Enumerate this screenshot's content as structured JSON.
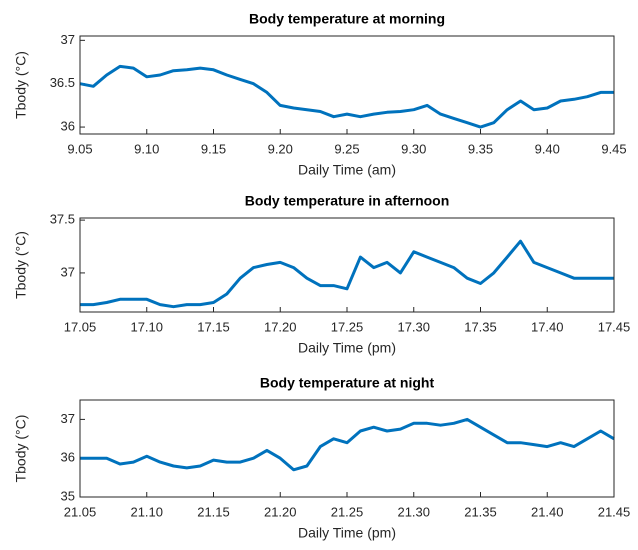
{
  "chart_data": [
    {
      "type": "line",
      "title": "Body temperature at morning",
      "xlabel": "Daily Time (am)",
      "ylabel": "Tbody (°C)",
      "color": "#0072bd",
      "x": [
        9.05,
        9.06,
        9.07,
        9.08,
        9.09,
        9.1,
        9.11,
        9.12,
        9.13,
        9.14,
        9.15,
        9.16,
        9.17,
        9.18,
        9.19,
        9.2,
        9.21,
        9.22,
        9.23,
        9.24,
        9.25,
        9.26,
        9.27,
        9.28,
        9.29,
        9.3,
        9.31,
        9.32,
        9.33,
        9.34,
        9.35,
        9.36,
        9.37,
        9.38,
        9.39,
        9.4,
        9.41,
        9.42,
        9.43,
        9.44,
        9.45
      ],
      "values": [
        36.5,
        36.47,
        36.6,
        36.7,
        36.68,
        36.58,
        36.6,
        36.65,
        36.66,
        36.68,
        36.66,
        36.6,
        36.55,
        36.5,
        36.4,
        36.25,
        36.22,
        36.2,
        36.18,
        36.12,
        36.15,
        36.12,
        36.15,
        36.17,
        36.18,
        36.2,
        36.25,
        36.15,
        36.1,
        36.05,
        36.0,
        36.05,
        36.2,
        36.3,
        36.2,
        36.22,
        36.3,
        36.32,
        36.35,
        36.4,
        36.4
      ],
      "xlim": [
        9.05,
        9.45
      ],
      "xticks": [
        9.05,
        {
          "value": 9.1,
          "label": "9.10"
        },
        9.15,
        {
          "value": 9.2,
          "label": "9.20"
        },
        9.25,
        {
          "value": 9.3,
          "label": "9.30"
        },
        9.35,
        {
          "value": 9.4,
          "label": "9.40"
        },
        9.45
      ],
      "ylim": [
        35.92,
        37.05
      ],
      "yticks": [
        36,
        36.5,
        37
      ]
    },
    {
      "type": "line",
      "title": "Body temperature in afternoon",
      "xlabel": "Daily Time (pm)",
      "ylabel": "Tbody (°C)",
      "color": "#0072bd",
      "x": [
        17.05,
        17.06,
        17.07,
        17.08,
        17.09,
        17.1,
        17.11,
        17.12,
        17.13,
        17.14,
        17.15,
        17.16,
        17.17,
        17.18,
        17.19,
        17.2,
        17.21,
        17.22,
        17.23,
        17.24,
        17.25,
        17.26,
        17.27,
        17.28,
        17.29,
        17.3,
        17.31,
        17.32,
        17.33,
        17.34,
        17.35,
        17.36,
        17.37,
        17.38,
        17.39,
        17.4,
        17.41,
        17.42,
        17.43,
        17.44,
        17.45
      ],
      "values": [
        36.7,
        36.7,
        36.72,
        36.75,
        36.75,
        36.75,
        36.7,
        36.68,
        36.7,
        36.7,
        36.72,
        36.8,
        36.95,
        37.05,
        37.08,
        37.1,
        37.05,
        36.95,
        36.88,
        36.88,
        36.85,
        37.15,
        37.05,
        37.1,
        37.0,
        37.2,
        37.15,
        37.1,
        37.05,
        36.95,
        36.9,
        37.0,
        37.15,
        37.3,
        37.1,
        37.05,
        37.0,
        36.95,
        36.95,
        36.95,
        36.95
      ],
      "xlim": [
        17.05,
        17.45
      ],
      "xticks": [
        17.05,
        {
          "value": 17.1,
          "label": "17.10"
        },
        17.15,
        {
          "value": 17.2,
          "label": "17.20"
        },
        17.25,
        {
          "value": 17.3,
          "label": "17.30"
        },
        17.35,
        {
          "value": 17.4,
          "label": "17.40"
        },
        17.45
      ],
      "ylim": [
        36.63,
        37.52
      ],
      "yticks": [
        37,
        37.5
      ]
    },
    {
      "type": "line",
      "title": "Body temperature at night",
      "xlabel": "Daily Time (pm)",
      "ylabel": "Tbody (°C)",
      "color": "#0072bd",
      "x": [
        21.05,
        21.06,
        21.07,
        21.08,
        21.09,
        21.1,
        21.11,
        21.12,
        21.13,
        21.14,
        21.15,
        21.16,
        21.17,
        21.18,
        21.19,
        21.2,
        21.21,
        21.22,
        21.23,
        21.24,
        21.25,
        21.26,
        21.27,
        21.28,
        21.29,
        21.3,
        21.31,
        21.32,
        21.33,
        21.34,
        21.35,
        21.36,
        21.37,
        21.38,
        21.39,
        21.4,
        21.41,
        21.42,
        21.43,
        21.44,
        21.45
      ],
      "values": [
        36.0,
        36.0,
        36.0,
        35.85,
        35.9,
        36.05,
        35.9,
        35.8,
        35.75,
        35.8,
        35.95,
        35.9,
        35.9,
        36.0,
        36.2,
        36.0,
        35.7,
        35.8,
        36.3,
        36.5,
        36.4,
        36.7,
        36.8,
        36.7,
        36.75,
        36.9,
        36.9,
        36.85,
        36.9,
        37.0,
        36.8,
        36.6,
        36.4,
        36.4,
        36.35,
        36.3,
        36.4,
        36.3,
        36.5,
        36.7,
        36.5
      ],
      "xlim": [
        21.05,
        21.45
      ],
      "xticks": [
        21.05,
        {
          "value": 21.1,
          "label": "21.10"
        },
        21.15,
        {
          "value": 21.2,
          "label": "21.20"
        },
        21.25,
        {
          "value": 21.3,
          "label": "21.30"
        },
        21.35,
        {
          "value": 21.4,
          "label": "21.40"
        },
        21.45
      ],
      "ylim": [
        35,
        37.5
      ],
      "yticks": [
        35,
        36,
        37
      ]
    }
  ]
}
